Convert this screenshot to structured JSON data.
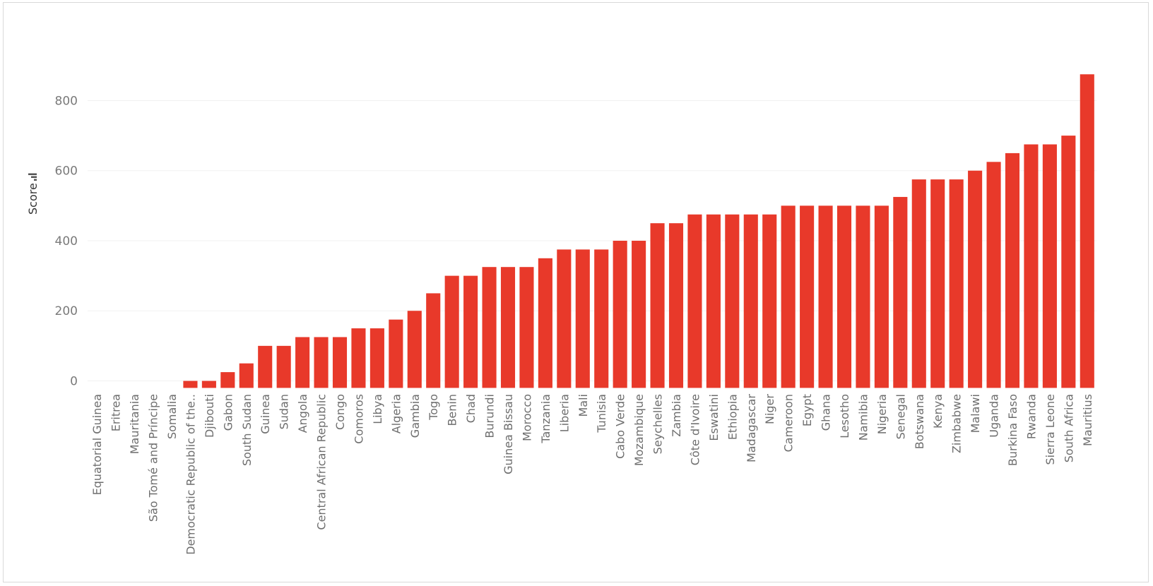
{
  "chart_data": {
    "type": "bar",
    "ylabel": "Score",
    "ylim": [
      -20,
      920
    ],
    "yticks": [
      0,
      200,
      400,
      600,
      800
    ],
    "ytick_labels": [
      "0",
      "200",
      "400",
      "600",
      "800"
    ],
    "grid": true,
    "bar_color": "#e8392a",
    "categories": [
      "Equatorial Guinea",
      "Eritrea",
      "Mauritania",
      "São Tomé and Príncipe",
      "Somalia",
      "Democratic Republic of the..",
      "Djibouti",
      "Gabon",
      "South Sudan",
      "Guinea",
      "Sudan",
      "Angola",
      "Central African Republic",
      "Congo",
      "Comoros",
      "Libya",
      "Algeria",
      "Gambia",
      "Togo",
      "Benin",
      "Chad",
      "Burundi",
      "Guinea Bissau",
      "Morocco",
      "Tanzania",
      "Liberia",
      "Mali",
      "Tunisia",
      "Cabo Verde",
      "Mozambique",
      "Seychelles",
      "Zambia",
      "Côte d'Ivoire",
      "Eswatini",
      "Ethiopia",
      "Madagascar",
      "Niger",
      "Cameroon",
      "Egypt",
      "Ghana",
      "Lesotho",
      "Namibia",
      "Nigeria",
      "Senegal",
      "Botswana",
      "Kenya",
      "Zimbabwe",
      "Malawi",
      "Uganda",
      "Burkina Faso",
      "Rwanda",
      "Sierra Leone",
      "South Africa",
      "Mauritius"
    ],
    "values": [
      -20,
      -20,
      -20,
      -20,
      -20,
      0,
      0,
      25,
      50,
      100,
      100,
      125,
      125,
      125,
      150,
      150,
      175,
      200,
      250,
      300,
      300,
      325,
      325,
      325,
      350,
      375,
      375,
      375,
      400,
      400,
      450,
      450,
      475,
      475,
      475,
      475,
      475,
      500,
      500,
      500,
      500,
      500,
      500,
      525,
      575,
      575,
      575,
      600,
      625,
      650,
      675,
      675,
      700,
      875
    ]
  }
}
